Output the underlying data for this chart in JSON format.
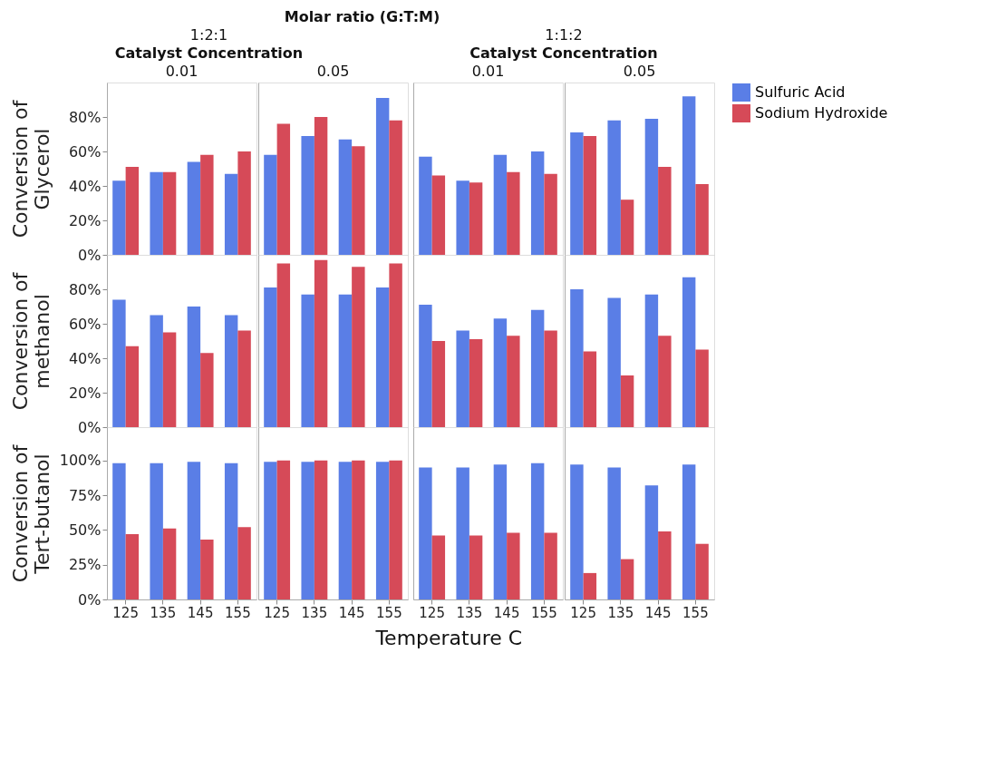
{
  "chart_data": [
    {
      "type": "bar",
      "title": "0.01",
      "annotations": [
        "Molar ratio (G:T:M)",
        "1:2:1",
        "Catalyst Concentration"
      ],
      "ylabel": "Conversion of Glycerol",
      "legend": "right",
      "tick_labels": "y",
      "categories": [
        "125",
        "135",
        "145",
        "155"
      ],
      "ylim": [
        0,
        100
      ],
      "yticks": [
        {
          "value": 0,
          "label": "0%"
        },
        {
          "value": 20,
          "label": "20%"
        },
        {
          "value": 40,
          "label": "40%"
        },
        {
          "value": 60,
          "label": "60%"
        },
        {
          "value": 80,
          "label": "80%"
        }
      ],
      "series": [
        {
          "name": "Sulfuric Acid",
          "color": "#5a7ee6",
          "values": [
            43,
            48,
            54,
            47
          ]
        },
        {
          "name": "Sodium Hydroxide",
          "color": "#d64a58",
          "values": [
            51,
            48,
            58,
            60
          ]
        }
      ]
    },
    {
      "type": "bar",
      "title": "0.05",
      "legend": "right",
      "tick_labels": false,
      "categories": [
        "125",
        "135",
        "145",
        "155"
      ],
      "ylim": [
        0,
        100
      ],
      "yticks": [
        {
          "value": 0,
          "label": "0%"
        },
        {
          "value": 20,
          "label": "20%"
        },
        {
          "value": 40,
          "label": "40%"
        },
        {
          "value": 60,
          "label": "60%"
        },
        {
          "value": 80,
          "label": "80%"
        }
      ],
      "series": [
        {
          "name": "Sulfuric Acid",
          "color": "#5a7ee6",
          "values": [
            58,
            69,
            67,
            91
          ]
        },
        {
          "name": "Sodium Hydroxide",
          "color": "#d64a58",
          "values": [
            76,
            80,
            63,
            78
          ]
        }
      ]
    },
    {
      "type": "bar",
      "title": "0.01",
      "annotations": [
        "1:1:2",
        "Catalyst Concentration"
      ],
      "legend": "right",
      "tick_labels": false,
      "categories": [
        "125",
        "135",
        "145",
        "155"
      ],
      "ylim": [
        0,
        100
      ],
      "yticks": [
        {
          "value": 0,
          "label": "0%"
        },
        {
          "value": 20,
          "label": "20%"
        },
        {
          "value": 40,
          "label": "40%"
        },
        {
          "value": 60,
          "label": "60%"
        },
        {
          "value": 80,
          "label": "80%"
        }
      ],
      "series": [
        {
          "name": "Sulfuric Acid",
          "color": "#5a7ee6",
          "values": [
            57,
            43,
            58,
            60
          ]
        },
        {
          "name": "Sodium Hydroxide",
          "color": "#d64a58",
          "values": [
            46,
            42,
            48,
            47
          ]
        }
      ]
    },
    {
      "type": "bar",
      "title": "0.05",
      "legend": "right",
      "tick_labels": false,
      "categories": [
        "125",
        "135",
        "145",
        "155"
      ],
      "ylim": [
        0,
        100
      ],
      "yticks": [
        {
          "value": 0,
          "label": "0%"
        },
        {
          "value": 20,
          "label": "20%"
        },
        {
          "value": 40,
          "label": "40%"
        },
        {
          "value": 60,
          "label": "60%"
        },
        {
          "value": 80,
          "label": "80%"
        }
      ],
      "series": [
        {
          "name": "Sulfuric Acid",
          "color": "#5a7ee6",
          "values": [
            71,
            78,
            79,
            92
          ]
        },
        {
          "name": "Sodium Hydroxide",
          "color": "#d64a58",
          "values": [
            69,
            32,
            51,
            41
          ]
        }
      ]
    },
    {
      "type": "bar",
      "ylabel": "Conversion of methanol",
      "legend": "right",
      "tick_labels": "y",
      "categories": [
        "125",
        "135",
        "145",
        "155"
      ],
      "ylim": [
        0,
        100
      ],
      "yticks": [
        {
          "value": 0,
          "label": "0%"
        },
        {
          "value": 20,
          "label": "20%"
        },
        {
          "value": 40,
          "label": "40%"
        },
        {
          "value": 60,
          "label": "60%"
        },
        {
          "value": 80,
          "label": "80%"
        }
      ],
      "series": [
        {
          "name": "Sulfuric Acid",
          "color": "#5a7ee6",
          "values": [
            74,
            65,
            70,
            65
          ]
        },
        {
          "name": "Sodium Hydroxide",
          "color": "#d64a58",
          "values": [
            47,
            55,
            43,
            56
          ]
        }
      ]
    },
    {
      "type": "bar",
      "tick_labels": false,
      "categories": [
        "125",
        "135",
        "145",
        "155"
      ],
      "ylim": [
        0,
        100
      ],
      "yticks": [
        {
          "value": 0,
          "label": "0%"
        },
        {
          "value": 20,
          "label": "20%"
        },
        {
          "value": 40,
          "label": "40%"
        },
        {
          "value": 60,
          "label": "60%"
        },
        {
          "value": 80,
          "label": "80%"
        }
      ],
      "series": [
        {
          "name": "Sulfuric Acid",
          "color": "#5a7ee6",
          "values": [
            81,
            77,
            77,
            81
          ]
        },
        {
          "name": "Sodium Hydroxide",
          "color": "#d64a58",
          "values": [
            95,
            97,
            93,
            95
          ]
        }
      ]
    },
    {
      "type": "bar",
      "tick_labels": false,
      "categories": [
        "125",
        "135",
        "145",
        "155"
      ],
      "ylim": [
        0,
        100
      ],
      "yticks": [
        {
          "value": 0,
          "label": "0%"
        },
        {
          "value": 20,
          "label": "20%"
        },
        {
          "value": 40,
          "label": "40%"
        },
        {
          "value": 60,
          "label": "60%"
        },
        {
          "value": 80,
          "label": "80%"
        }
      ],
      "series": [
        {
          "name": "Sulfuric Acid",
          "color": "#5a7ee6",
          "values": [
            71,
            56,
            63,
            68
          ]
        },
        {
          "name": "Sodium Hydroxide",
          "color": "#d64a58",
          "values": [
            50,
            51,
            53,
            56
          ]
        }
      ]
    },
    {
      "type": "bar",
      "tick_labels": false,
      "categories": [
        "125",
        "135",
        "145",
        "155"
      ],
      "ylim": [
        0,
        100
      ],
      "yticks": [
        {
          "value": 0,
          "label": "0%"
        },
        {
          "value": 20,
          "label": "20%"
        },
        {
          "value": 40,
          "label": "40%"
        },
        {
          "value": 60,
          "label": "60%"
        },
        {
          "value": 80,
          "label": "80%"
        }
      ],
      "series": [
        {
          "name": "Sulfuric Acid",
          "color": "#5a7ee6",
          "values": [
            80,
            75,
            77,
            87
          ]
        },
        {
          "name": "Sodium Hydroxide",
          "color": "#d64a58",
          "values": [
            44,
            30,
            53,
            45
          ]
        }
      ]
    },
    {
      "type": "bar",
      "ylabel": "Conversion of Tert-butanol",
      "annotations": [
        "Temperature C"
      ],
      "legend": "right",
      "categories": [
        "125",
        "135",
        "145",
        "155"
      ],
      "ylim": [
        0,
        124
      ],
      "yticks": [
        {
          "value": 0,
          "label": "0%"
        },
        {
          "value": 25,
          "label": "25%"
        },
        {
          "value": 50,
          "label": "50%"
        },
        {
          "value": 75,
          "label": "75%"
        },
        {
          "value": 100,
          "label": "100%"
        }
      ],
      "series": [
        {
          "name": "Sulfuric Acid",
          "color": "#5a7ee6",
          "values": [
            98,
            98,
            99,
            98
          ]
        },
        {
          "name": "Sodium Hydroxide",
          "color": "#d64a58",
          "values": [
            47,
            51,
            43,
            52
          ]
        }
      ]
    },
    {
      "type": "bar",
      "tick_labels": "x",
      "categories": [
        "125",
        "135",
        "145",
        "155"
      ],
      "ylim": [
        0,
        124
      ],
      "yticks": [
        {
          "value": 0,
          "label": "0%"
        },
        {
          "value": 25,
          "label": "25%"
        },
        {
          "value": 50,
          "label": "50%"
        },
        {
          "value": 75,
          "label": "75%"
        },
        {
          "value": 100,
          "label": "100%"
        }
      ],
      "series": [
        {
          "name": "Sulfuric Acid",
          "color": "#5a7ee6",
          "values": [
            99,
            99,
            99,
            99
          ]
        },
        {
          "name": "Sodium Hydroxide",
          "color": "#d64a58",
          "values": [
            100,
            100,
            100,
            100
          ]
        }
      ]
    },
    {
      "type": "bar",
      "tick_labels": "x",
      "categories": [
        "125",
        "135",
        "145",
        "155"
      ],
      "ylim": [
        0,
        124
      ],
      "yticks": [
        {
          "value": 0,
          "label": "0%"
        },
        {
          "value": 25,
          "label": "25%"
        },
        {
          "value": 50,
          "label": "50%"
        },
        {
          "value": 75,
          "label": "75%"
        },
        {
          "value": 100,
          "label": "100%"
        }
      ],
      "series": [
        {
          "name": "Sulfuric Acid",
          "color": "#5a7ee6",
          "values": [
            95,
            95,
            97,
            98
          ]
        },
        {
          "name": "Sodium Hydroxide",
          "color": "#d64a58",
          "values": [
            46,
            46,
            48,
            48
          ]
        }
      ]
    },
    {
      "type": "bar",
      "tick_labels": "x",
      "categories": [
        "125",
        "135",
        "145",
        "155"
      ],
      "ylim": [
        0,
        124
      ],
      "yticks": [
        {
          "value": 0,
          "label": "0%"
        },
        {
          "value": 25,
          "label": "25%"
        },
        {
          "value": 50,
          "label": "50%"
        },
        {
          "value": 75,
          "label": "75%"
        },
        {
          "value": 100,
          "label": "100%"
        }
      ],
      "series": [
        {
          "name": "Sulfuric Acid",
          "color": "#5a7ee6",
          "values": [
            97,
            95,
            82,
            97
          ]
        },
        {
          "name": "Sodium Hydroxide",
          "color": "#d64a58",
          "values": [
            19,
            29,
            49,
            40
          ]
        }
      ]
    }
  ]
}
